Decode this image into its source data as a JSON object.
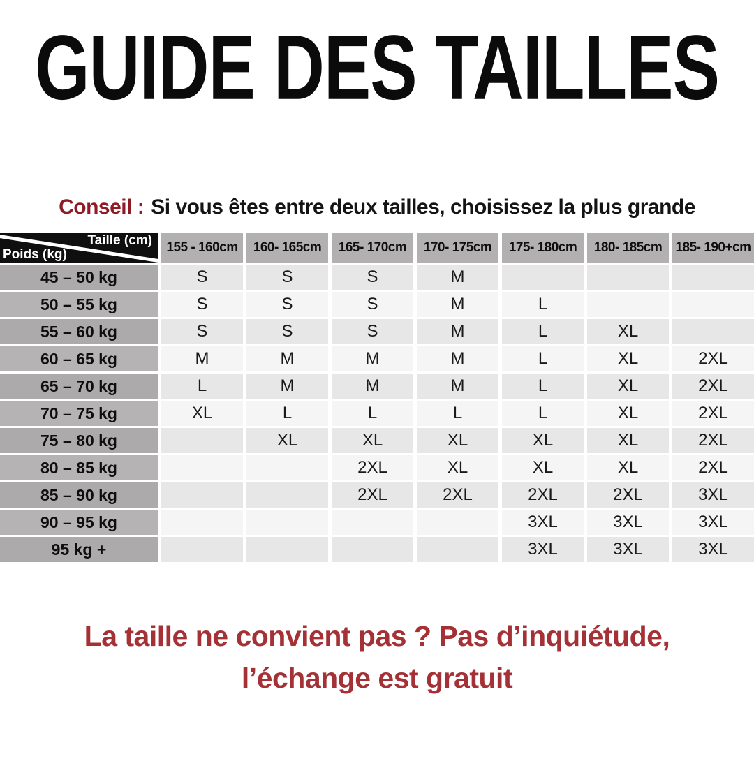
{
  "page": {
    "title": "GUIDE DES TAILLES",
    "advice_label": "Conseil :",
    "advice_text": "Si vous êtes entre deux tailles, choisissez la plus grande",
    "footer_line1": "La taille ne convient pas ? Pas d’inquiétude,",
    "footer_line2": "l’échange est gratuit"
  },
  "table": {
    "corner": {
      "top": "Taille (cm)",
      "bottom": "Poids (kg)"
    },
    "columns": [
      "155 - 160cm",
      "160- 165cm",
      "165- 170cm",
      "170- 175cm",
      "175- 180cm",
      "180- 185cm",
      "185- 190+cm"
    ],
    "rows": [
      {
        "label": "45 – 50 kg",
        "values": [
          "S",
          "S",
          "S",
          "M",
          "",
          "",
          ""
        ]
      },
      {
        "label": "50 – 55 kg",
        "values": [
          "S",
          "S",
          "S",
          "M",
          "L",
          "",
          ""
        ]
      },
      {
        "label": "55 – 60 kg",
        "values": [
          "S",
          "S",
          "S",
          "M",
          "L",
          "XL",
          ""
        ]
      },
      {
        "label": "60 – 65 kg",
        "values": [
          "M",
          "M",
          "M",
          "M",
          "L",
          "XL",
          "2XL"
        ]
      },
      {
        "label": "65 – 70 kg",
        "values": [
          "L",
          "M",
          "M",
          "M",
          "L",
          "XL",
          "2XL"
        ]
      },
      {
        "label": "70 – 75 kg",
        "values": [
          "XL",
          "L",
          "L",
          "L",
          "L",
          "XL",
          "2XL"
        ]
      },
      {
        "label": "75 – 80 kg",
        "values": [
          "",
          "XL",
          "XL",
          "XL",
          "XL",
          "XL",
          "2XL"
        ]
      },
      {
        "label": "80 – 85 kg",
        "values": [
          "",
          "",
          "2XL",
          "XL",
          "XL",
          "XL",
          "2XL"
        ]
      },
      {
        "label": "85 – 90 kg",
        "values": [
          "",
          "",
          "2XL",
          "2XL",
          "2XL",
          "2XL",
          "3XL"
        ]
      },
      {
        "label": "90 – 95 kg",
        "values": [
          "",
          "",
          "",
          "",
          "3XL",
          "3XL",
          "3XL"
        ]
      },
      {
        "label": "95 kg +",
        "values": [
          "",
          "",
          "",
          "",
          "3XL",
          "3XL",
          "3XL"
        ]
      }
    ]
  },
  "colors": {
    "title_black": "#0b0b0b",
    "body_black": "#141414",
    "conseil_red": "#8e1c26",
    "footer_red": "#a43135",
    "corner_black": "#0f0f0f",
    "header_gray": "#b2b0b0",
    "label_dark": "#acaaaa",
    "label_light": "#b5b3b3",
    "cell_dark": "#e8e7e7",
    "cell_light": "#f6f5f5"
  }
}
